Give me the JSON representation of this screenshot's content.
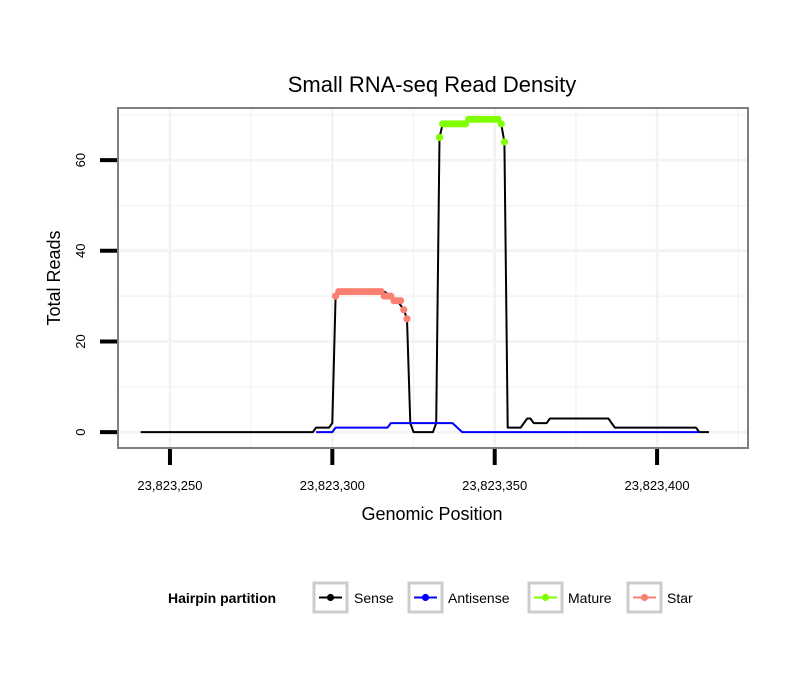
{
  "colors": {
    "sense": "#000000",
    "antisense": "#0000ff",
    "mature": "#7fff00",
    "star": "#fa8072",
    "panel_border": "#7f7f7f",
    "grid": "#f2f2f2"
  },
  "chart_data": {
    "type": "line",
    "title": "Small RNA-seq Read Density",
    "xlabel": "Genomic Position",
    "ylabel": "Total Reads",
    "xlim": [
      23823234,
      23823428
    ],
    "ylim": [
      -3.5,
      71.5
    ],
    "x_ticks": [
      23823250,
      23823300,
      23823350,
      23823400
    ],
    "x_tick_labels": [
      "23,823,250",
      "23,823,300",
      "23,823,350",
      "23,823,400"
    ],
    "y_ticks": [
      0,
      20,
      40,
      60
    ],
    "y_tick_labels": [
      "0",
      "20",
      "40",
      "60"
    ],
    "grid": true,
    "legend": {
      "title": "Hairpin partition",
      "position": "bottom",
      "entries": [
        "Sense",
        "Antisense",
        "Mature",
        "Star"
      ]
    },
    "series": [
      {
        "name": "Sense",
        "key": "sense",
        "mode": "line",
        "points": [
          [
            23823241,
            0
          ],
          [
            23823294,
            0
          ],
          [
            23823295,
            1
          ],
          [
            23823299,
            1
          ],
          [
            23823300,
            2
          ],
          [
            23823301,
            30
          ],
          [
            23823302,
            31
          ],
          [
            23823316,
            31
          ],
          [
            23823318,
            30
          ],
          [
            23823320,
            29
          ],
          [
            23823322,
            27
          ],
          [
            23823323,
            25
          ],
          [
            23823324,
            2
          ],
          [
            23823325,
            0
          ],
          [
            23823331,
            0
          ],
          [
            23823332,
            2
          ],
          [
            23823333,
            65
          ],
          [
            23823334,
            68
          ],
          [
            23823341,
            68
          ],
          [
            23823342,
            69
          ],
          [
            23823351,
            69
          ],
          [
            23823352,
            68
          ],
          [
            23823353,
            64
          ],
          [
            23823354,
            1
          ],
          [
            23823358,
            1
          ],
          [
            23823360,
            3
          ],
          [
            23823361,
            3
          ],
          [
            23823362,
            2
          ],
          [
            23823366,
            2
          ],
          [
            23823367,
            3
          ],
          [
            23823385,
            3
          ],
          [
            23823386,
            2
          ],
          [
            23823387,
            1
          ],
          [
            23823412,
            1
          ],
          [
            23823413,
            0
          ],
          [
            23823416,
            0
          ]
        ]
      },
      {
        "name": "Antisense",
        "key": "antisense",
        "mode": "line",
        "points": [
          [
            23823295,
            0
          ],
          [
            23823300,
            0
          ],
          [
            23823301,
            1
          ],
          [
            23823317,
            1
          ],
          [
            23823318,
            2
          ],
          [
            23823337,
            2
          ],
          [
            23823340,
            0
          ],
          [
            23823413,
            0
          ]
        ]
      },
      {
        "name": "Mature",
        "key": "mature",
        "mode": "points",
        "points": [
          [
            23823333,
            65
          ],
          [
            23823334,
            68
          ],
          [
            23823335,
            68
          ],
          [
            23823336,
            68
          ],
          [
            23823337,
            68
          ],
          [
            23823338,
            68
          ],
          [
            23823339,
            68
          ],
          [
            23823340,
            68
          ],
          [
            23823341,
            68
          ],
          [
            23823342,
            69
          ],
          [
            23823343,
            69
          ],
          [
            23823344,
            69
          ],
          [
            23823345,
            69
          ],
          [
            23823346,
            69
          ],
          [
            23823347,
            69
          ],
          [
            23823348,
            69
          ],
          [
            23823349,
            69
          ],
          [
            23823350,
            69
          ],
          [
            23823351,
            69
          ],
          [
            23823352,
            68
          ],
          [
            23823353,
            64
          ]
        ]
      },
      {
        "name": "Star",
        "key": "star",
        "mode": "points",
        "points": [
          [
            23823301,
            30
          ],
          [
            23823302,
            31
          ],
          [
            23823303,
            31
          ],
          [
            23823304,
            31
          ],
          [
            23823305,
            31
          ],
          [
            23823306,
            31
          ],
          [
            23823307,
            31
          ],
          [
            23823308,
            31
          ],
          [
            23823309,
            31
          ],
          [
            23823310,
            31
          ],
          [
            23823311,
            31
          ],
          [
            23823312,
            31
          ],
          [
            23823313,
            31
          ],
          [
            23823314,
            31
          ],
          [
            23823315,
            31
          ],
          [
            23823316,
            30
          ],
          [
            23823317,
            30
          ],
          [
            23823318,
            30
          ],
          [
            23823319,
            29
          ],
          [
            23823320,
            29
          ],
          [
            23823321,
            29
          ],
          [
            23823322,
            27
          ],
          [
            23823323,
            25
          ]
        ]
      }
    ]
  }
}
